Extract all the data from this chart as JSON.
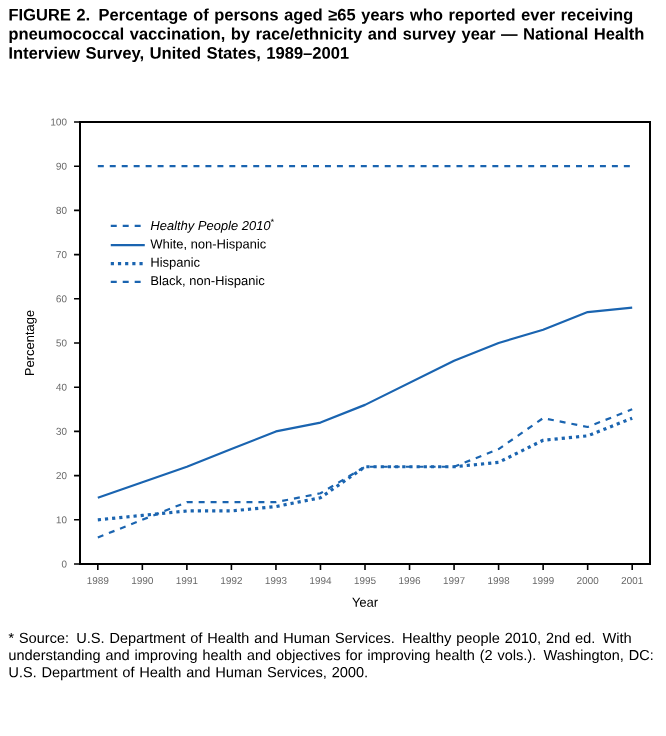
{
  "chart_data": {
    "type": "line",
    "title": "FIGURE 2. Percentage of persons aged ≥65 years who reported ever receiving pneumococcal vaccination, by race/ethnicity and survey year — National Health Interview Survey, United States, 1989–2001",
    "xlabel": "Year",
    "ylabel": "Percentage",
    "x": [
      1989,
      1990,
      1991,
      1992,
      1993,
      1994,
      1995,
      1996,
      1997,
      1998,
      1999,
      2000,
      2001
    ],
    "series": [
      {
        "name": "*Healthy People 2010*$^{*}$",
        "color": "#1a64b0",
        "line_style": "dashed",
        "values": [
          90,
          90,
          90,
          90,
          90,
          90,
          90,
          90,
          90,
          90,
          90,
          90,
          90
        ]
      },
      {
        "name": "White, non-Hispanic",
        "color": "#1a64b0",
        "line_style": "solid",
        "values": [
          15,
          18.5,
          22,
          26,
          30,
          32,
          36,
          41,
          46,
          50,
          53,
          57,
          58
        ]
      },
      {
        "name": "Hispanic",
        "color": "#1a64b0",
        "line_style": "dotted",
        "values": [
          10,
          11,
          12,
          12,
          13,
          15,
          22,
          22,
          22,
          23,
          28,
          29,
          33
        ]
      },
      {
        "name": "Black, non-Hispanic",
        "color": "#1a64b0",
        "line_style": "dashed",
        "values": [
          6,
          10,
          14,
          14,
          14,
          16,
          22,
          22,
          22,
          26,
          33,
          31,
          35
        ]
      }
    ],
    "xlim": [
      1988.6,
      2001.4
    ],
    "ylim": [
      0,
      100
    ],
    "xticks": [
      1989,
      1990,
      1991,
      1992,
      1993,
      1994,
      1995,
      1996,
      1997,
      1998,
      1999,
      2000,
      2001
    ],
    "yticks": [
      0,
      10,
      20,
      30,
      40,
      50,
      60,
      70,
      80,
      90,
      100
    ],
    "legend": "top left",
    "grid": false,
    "marker": "none",
    "annotations": [
      "* Source: U.S. Department of Health and Human Services. Healthy people 2010, 2nd ed. With understanding and improving health and objectives for improving health (2 vols.). Washington, DC: U.S. Department of Health and Human Services, 2000."
    ]
  }
}
